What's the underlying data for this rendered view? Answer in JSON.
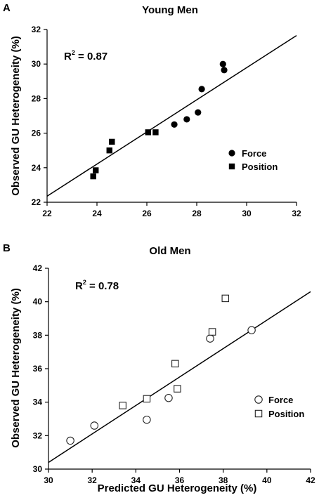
{
  "chart_data": [
    {
      "panel": "A",
      "type": "scatter",
      "title": "Young Men",
      "xlabel": "",
      "ylabel": "Observed GU Heterogeneity (%)",
      "xlim": [
        22,
        32
      ],
      "ylim": [
        22,
        32
      ],
      "xticks": [
        22,
        24,
        26,
        28,
        30,
        32
      ],
      "yticks": [
        22,
        24,
        26,
        28,
        30,
        32
      ],
      "annotation": {
        "prefix": "R",
        "sup": "2",
        "suffix": " = 0.87"
      },
      "legend_position": "bottom-right",
      "fit_line": {
        "x": [
          22,
          32
        ],
        "y": [
          22.35,
          31.65
        ]
      },
      "series": [
        {
          "name": "Force",
          "marker": "filled-circle",
          "points": [
            [
              27.1,
              26.5
            ],
            [
              27.6,
              26.8
            ],
            [
              28.05,
              27.2
            ],
            [
              28.2,
              28.55
            ],
            [
              29.05,
              30.0
            ],
            [
              29.1,
              29.65
            ]
          ]
        },
        {
          "name": "Position",
          "marker": "filled-square",
          "points": [
            [
              23.85,
              23.5
            ],
            [
              23.95,
              23.85
            ],
            [
              24.5,
              25.0
            ],
            [
              24.6,
              25.5
            ],
            [
              26.05,
              26.05
            ],
            [
              26.35,
              26.05
            ]
          ]
        }
      ]
    },
    {
      "panel": "B",
      "type": "scatter",
      "title": "Old Men",
      "xlabel": "Predicted GU Heterogeneity (%)",
      "ylabel": "Observed GU Heterogeneity (%)",
      "xlim": [
        30,
        42
      ],
      "ylim": [
        30,
        42
      ],
      "xticks": [
        30,
        32,
        34,
        36,
        38,
        40,
        42
      ],
      "yticks": [
        30,
        32,
        34,
        36,
        38,
        40,
        42
      ],
      "annotation": {
        "prefix": "R",
        "sup": "2",
        "suffix": " = 0.78"
      },
      "legend_position": "bottom-right",
      "fit_line": {
        "x": [
          30,
          42
        ],
        "y": [
          30.4,
          40.6
        ]
      },
      "series": [
        {
          "name": "Force",
          "marker": "open-circle",
          "points": [
            [
              31.0,
              31.7
            ],
            [
              32.1,
              32.6
            ],
            [
              34.5,
              32.95
            ],
            [
              35.5,
              34.25
            ],
            [
              37.4,
              37.8
            ],
            [
              39.3,
              38.3
            ]
          ]
        },
        {
          "name": "Position",
          "marker": "open-square",
          "points": [
            [
              33.4,
              33.8
            ],
            [
              34.5,
              34.2
            ],
            [
              35.9,
              34.8
            ],
            [
              35.8,
              36.3
            ],
            [
              37.5,
              38.2
            ],
            [
              38.1,
              40.2
            ]
          ]
        }
      ]
    }
  ]
}
